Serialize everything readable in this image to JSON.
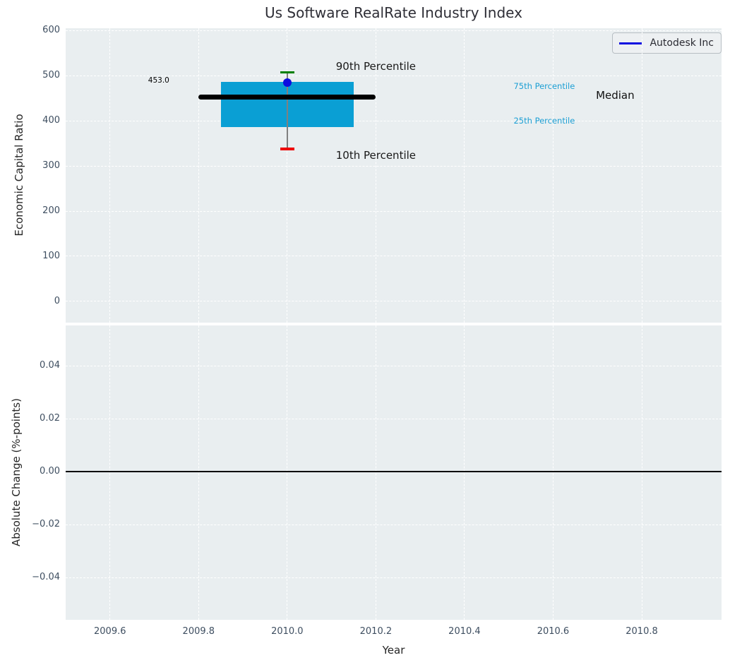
{
  "title": "Us Software RealRate Industry Index",
  "colors": {
    "plot_background": "#e9eef0",
    "grid": "#ffffff",
    "box_fill": "#0a9fd4",
    "median_line": "#000000",
    "whisker": "#808080",
    "p90_cap": "#008000",
    "p10_cap": "#ee0000",
    "company_blue": "#0d0de0",
    "cyan_label": "#1c9fd4",
    "tick_label": "#3e4e60",
    "zero_line": "#000000"
  },
  "legend": {
    "entries": [
      {
        "label": "Autodesk Inc",
        "color": "#0d0de0"
      }
    ],
    "position": "upper right"
  },
  "chart_data": [
    {
      "type": "boxplot",
      "title": "Us Software RealRate Industry Index",
      "ylabel": "Economic Capital Ratio",
      "xlabel": "",
      "xlim": [
        2009.5,
        2010.98
      ],
      "ylim": [
        -47,
        605
      ],
      "grid": true,
      "xticks": [
        2009.6,
        2009.8,
        2010.0,
        2010.2,
        2010.4,
        2010.6,
        2010.8
      ],
      "yticks": [
        0,
        100,
        200,
        300,
        400,
        500,
        600
      ],
      "ytick_labels": [
        "0",
        "100",
        "200",
        "300",
        "400",
        "500",
        "600"
      ],
      "box": {
        "x": 2010.0,
        "p10": 338,
        "p25": 386,
        "median": 453,
        "p75": 486,
        "p90": 507,
        "box_x_range": [
          2009.85,
          2010.15
        ],
        "median_x_range": [
          2009.8,
          2010.2
        ],
        "cap_halfwidth": 0.016,
        "median_label": "453.0"
      },
      "company_point": {
        "name": "Autodesk Inc",
        "x": 2010.0,
        "y": 484
      },
      "annotations": [
        {
          "text": "453.0",
          "x": 2009.71,
          "y": 489,
          "color": "#000000",
          "size": 10.5
        },
        {
          "text": "90th Percentile",
          "x": 2010.2,
          "y": 520,
          "color": "#1a1a1a",
          "size": 15
        },
        {
          "text": "10th Percentile",
          "x": 2010.2,
          "y": 323,
          "color": "#1a1a1a",
          "size": 15
        },
        {
          "text": "75th Percentile",
          "x": 2010.58,
          "y": 477,
          "color": "#1c9fd4",
          "size": 11.5
        },
        {
          "text": "25th Percentile",
          "x": 2010.58,
          "y": 400,
          "color": "#1c9fd4",
          "size": 11.5
        },
        {
          "text": "Median",
          "x": 2010.74,
          "y": 456,
          "color": "#111111",
          "size": 15
        }
      ]
    },
    {
      "type": "line",
      "title": "",
      "ylabel": "Absolute Change (%-points)",
      "xlabel": "Year",
      "xlim": [
        2009.5,
        2010.98
      ],
      "ylim": [
        -0.056,
        0.0552
      ],
      "grid": true,
      "xticks": [
        2009.6,
        2009.8,
        2010.0,
        2010.2,
        2010.4,
        2010.6,
        2010.8
      ],
      "xtick_labels": [
        "2009.6",
        "2009.8",
        "2010.0",
        "2010.2",
        "2010.4",
        "2010.6",
        "2010.8"
      ],
      "yticks": [
        0.04,
        0.02,
        0.0,
        -0.02,
        -0.04
      ],
      "ytick_labels": [
        "0.04",
        "0.02",
        "0.00",
        "−0.02",
        "−0.04"
      ],
      "zero_line": {
        "y": 0.0,
        "color": "#000000"
      },
      "series": []
    }
  ]
}
